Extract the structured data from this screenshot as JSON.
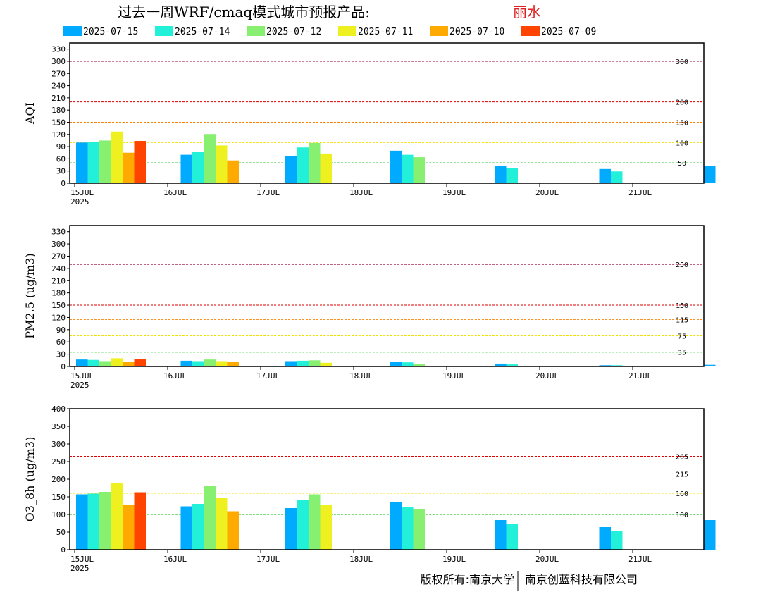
{
  "header": {
    "title": "过去一周WRF/cmaq模式城市预报产品:",
    "city": "丽水"
  },
  "legend": [
    {
      "label": "2025-07-15",
      "color": "#00aaff"
    },
    {
      "label": "2025-07-14",
      "color": "#22f0d8"
    },
    {
      "label": "2025-07-12",
      "color": "#88f070"
    },
    {
      "label": "2025-07-11",
      "color": "#eef020"
    },
    {
      "label": "2025-07-10",
      "color": "#ffaa00"
    },
    {
      "label": "2025-07-09",
      "color": "#ff4400"
    }
  ],
  "footer": {
    "copyright_left": "版权所有:南京大学",
    "copyright_right": "南京创蓝科技有限公司"
  },
  "chart_data": [
    {
      "type": "bar",
      "ylabel": "AQI",
      "ylim": [
        0,
        345
      ],
      "yticks": [
        0,
        30,
        60,
        90,
        120,
        150,
        180,
        210,
        240,
        270,
        300,
        330
      ],
      "xticks": [
        "15JUL",
        "16JUL",
        "17JUL",
        "18JUL",
        "19JUL",
        "20JUL",
        "21JUL"
      ],
      "xsublabel": "2025",
      "reference_lines": [
        {
          "value": 300,
          "label": "300",
          "color": "#a0003c"
        },
        {
          "value": 200,
          "label": "200",
          "color": "#e00000"
        },
        {
          "value": 150,
          "label": "150",
          "color": "#ff8000"
        },
        {
          "value": 100,
          "label": "100",
          "color": "#f0e000"
        },
        {
          "value": 50,
          "label": "50",
          "color": "#00c000"
        }
      ],
      "series": [
        {
          "name": "2025-07-15",
          "values": [
            100,
            70,
            66,
            80,
            43,
            35,
            43
          ]
        },
        {
          "name": "2025-07-14",
          "values": [
            102,
            77,
            88,
            70,
            38,
            29
          ]
        },
        {
          "name": "2025-07-12",
          "values": [
            105,
            121,
            99,
            64
          ]
        },
        {
          "name": "2025-07-11",
          "values": [
            127,
            93,
            73
          ]
        },
        {
          "name": "2025-07-10",
          "values": [
            75,
            56
          ]
        },
        {
          "name": "2025-07-09",
          "values": [
            104
          ]
        }
      ]
    },
    {
      "type": "bar",
      "ylabel": "PM2.5 (ug/m3)",
      "ylim": [
        0,
        345
      ],
      "yticks": [
        0,
        30,
        60,
        90,
        120,
        150,
        180,
        210,
        240,
        270,
        300,
        330
      ],
      "xticks": [
        "15JUL",
        "16JUL",
        "17JUL",
        "18JUL",
        "19JUL",
        "20JUL",
        "21JUL"
      ],
      "xsublabel": "2025",
      "reference_lines": [
        {
          "value": 250,
          "label": "250",
          "color": "#a0003c"
        },
        {
          "value": 150,
          "label": "150",
          "color": "#e00000"
        },
        {
          "value": 115,
          "label": "115",
          "color": "#ff8000"
        },
        {
          "value": 75,
          "label": "75",
          "color": "#f0e000"
        },
        {
          "value": 35,
          "label": "35",
          "color": "#00c000"
        }
      ],
      "series": [
        {
          "name": "2025-07-15",
          "values": [
            17,
            14,
            13,
            12,
            7,
            3,
            4
          ]
        },
        {
          "name": "2025-07-14",
          "values": [
            16,
            13,
            14,
            10,
            5,
            3
          ]
        },
        {
          "name": "2025-07-12",
          "values": [
            13,
            17,
            15,
            6
          ]
        },
        {
          "name": "2025-07-11",
          "values": [
            20,
            13,
            9
          ]
        },
        {
          "name": "2025-07-10",
          "values": [
            12,
            12
          ]
        },
        {
          "name": "2025-07-09",
          "values": [
            18
          ]
        }
      ]
    },
    {
      "type": "bar",
      "ylabel": "O3_8h (ug/m3)",
      "ylim": [
        0,
        400
      ],
      "yticks": [
        0,
        50,
        100,
        150,
        200,
        250,
        300,
        350,
        400
      ],
      "xticks": [
        "15JUL",
        "16JUL",
        "17JUL",
        "18JUL",
        "19JUL",
        "20JUL",
        "21JUL"
      ],
      "xsublabel": "2025",
      "reference_lines": [
        {
          "value": 265,
          "label": "265",
          "color": "#e00000"
        },
        {
          "value": 215,
          "label": "215",
          "color": "#ff8000"
        },
        {
          "value": 160,
          "label": "160",
          "color": "#f0e000"
        },
        {
          "value": 100,
          "label": "100",
          "color": "#00c000"
        }
      ],
      "series": [
        {
          "name": "2025-07-15",
          "values": [
            157,
            123,
            118,
            134,
            84,
            64,
            84
          ]
        },
        {
          "name": "2025-07-14",
          "values": [
            159,
            130,
            142,
            122,
            72,
            54
          ]
        },
        {
          "name": "2025-07-12",
          "values": [
            164,
            182,
            157,
            116
          ]
        },
        {
          "name": "2025-07-11",
          "values": [
            188,
            147,
            127
          ]
        },
        {
          "name": "2025-07-10",
          "values": [
            126,
            109
          ]
        },
        {
          "name": "2025-07-09",
          "values": [
            163
          ]
        }
      ]
    }
  ]
}
